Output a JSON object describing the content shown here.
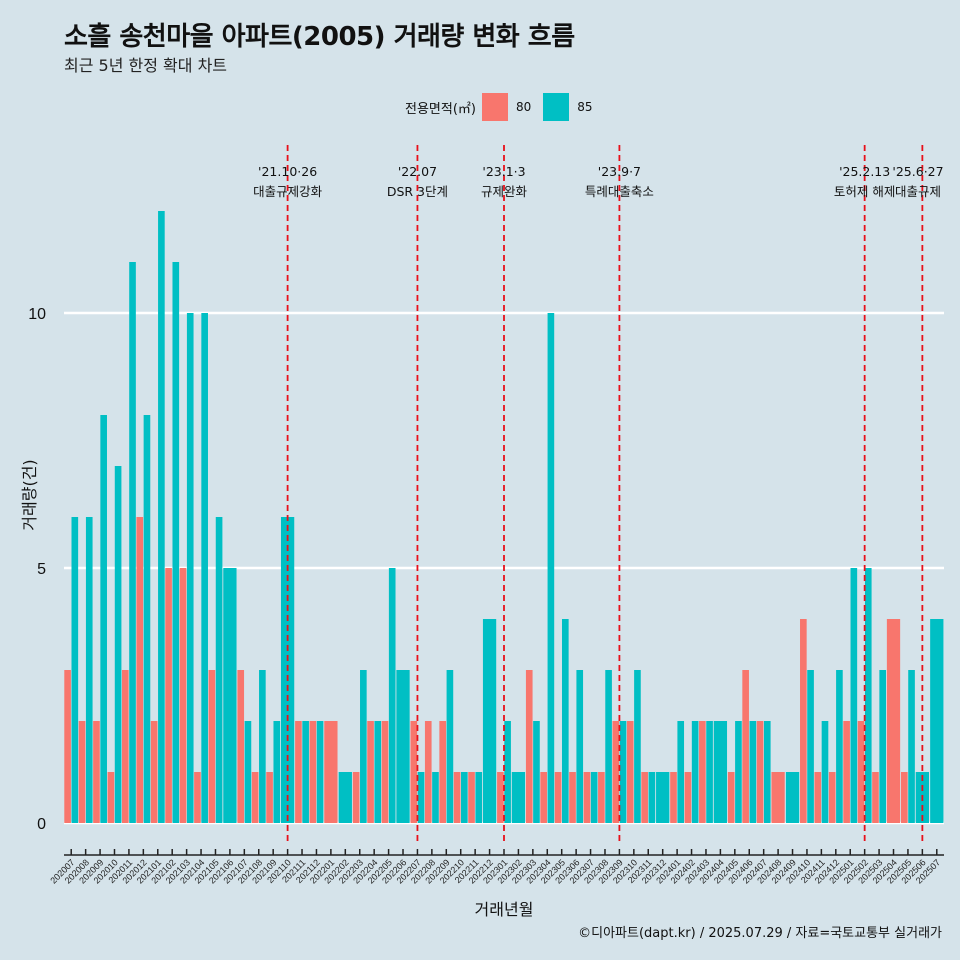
{
  "title": "소흘 송천마을 아파트(2005) 거래량 변화 흐름",
  "subtitle": "최근 5년 한정 확대 차트",
  "caption": "©디아파트(dapt.kr) / 2025.07.29 / 자료=국토교통부 실거래가",
  "legend": {
    "title": "전용면적(㎡)",
    "items": [
      {
        "label": "80",
        "color": "#f8766d"
      },
      {
        "label": "85",
        "color": "#00bfc4"
      }
    ]
  },
  "chart_data": {
    "type": "bar",
    "title": "소흘 송천마을 아파트(2005) 거래량 변화 흐름",
    "xlabel": "거래년월",
    "ylabel": "거래량(건)",
    "ylim": [
      0,
      13
    ],
    "yticks": [
      0,
      5,
      10
    ],
    "categories": [
      "202007",
      "202008",
      "202009",
      "202010",
      "202011",
      "202012",
      "202101",
      "202102",
      "202103",
      "202104",
      "202105",
      "202106",
      "202107",
      "202108",
      "202109",
      "202110",
      "202111",
      "202112",
      "202201",
      "202202",
      "202203",
      "202204",
      "202205",
      "202206",
      "202207",
      "202208",
      "202209",
      "202210",
      "202211",
      "202212",
      "202301",
      "202302",
      "202303",
      "202304",
      "202305",
      "202306",
      "202307",
      "202308",
      "202309",
      "202310",
      "202311",
      "202312",
      "202401",
      "202402",
      "202403",
      "202404",
      "202405",
      "202406",
      "202407",
      "202408",
      "202409",
      "202410",
      "202411",
      "202412",
      "202501",
      "202502",
      "202503",
      "202504",
      "202505",
      "202506",
      "202507"
    ],
    "series": [
      {
        "name": "80",
        "color": "#f8766d",
        "values": [
          3,
          2,
          2,
          1,
          3,
          6,
          2,
          5,
          5,
          1,
          3,
          0,
          3,
          1,
          1,
          0,
          2,
          2,
          2,
          0,
          1,
          2,
          2,
          0,
          2,
          2,
          2,
          1,
          1,
          0,
          1,
          0,
          3,
          1,
          1,
          1,
          1,
          1,
          2,
          2,
          1,
          0,
          1,
          1,
          2,
          0,
          1,
          3,
          2,
          1,
          0,
          4,
          1,
          1,
          2,
          2,
          1,
          4,
          1,
          0,
          0
        ]
      },
      {
        "name": "85",
        "color": "#00bfc4",
        "values": [
          6,
          6,
          8,
          7,
          11,
          8,
          12,
          11,
          10,
          10,
          6,
          5,
          2,
          3,
          2,
          6,
          2,
          2,
          0,
          1,
          3,
          2,
          5,
          3,
          1,
          1,
          3,
          1,
          1,
          4,
          2,
          1,
          2,
          10,
          4,
          3,
          1,
          3,
          2,
          3,
          1,
          1,
          2,
          2,
          2,
          2,
          2,
          2,
          2,
          0,
          1,
          3,
          2,
          3,
          5,
          5,
          3,
          0,
          3,
          1,
          4
        ]
      }
    ],
    "events": [
      {
        "date": "'21.10·26",
        "label": "대출규제강화",
        "x": "202110"
      },
      {
        "date": "'22.07",
        "label": "DSR 3단계",
        "x": "202207"
      },
      {
        "date": "'23.1·3",
        "label": "규제완화",
        "x": "202301"
      },
      {
        "date": "'23.9·7",
        "label": "특례대출축소",
        "x": "202309"
      },
      {
        "date": "'25.2.13",
        "label": "토허제 해제",
        "x": "202502"
      },
      {
        "date": "'25.6·27",
        "label": "대출규제",
        "x": "202506"
      }
    ]
  }
}
